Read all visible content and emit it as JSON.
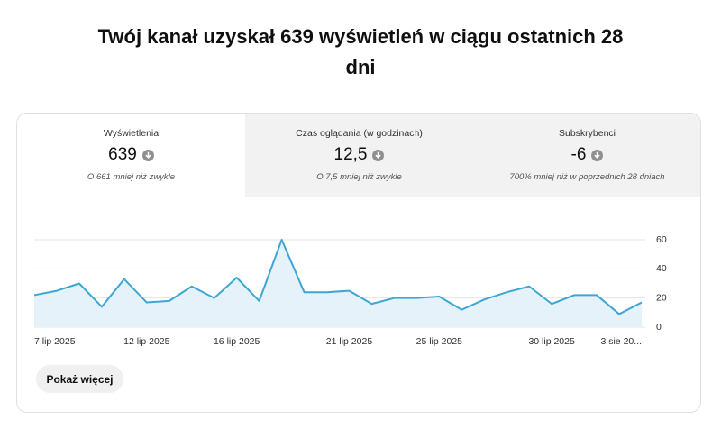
{
  "header": {
    "title": "Twój kanał uzyskał 639 wyświetleń w ciągu ostatnich 28 dni"
  },
  "tabs": [
    {
      "label": "Wyświetlenia",
      "value": "639",
      "note": "O 661 mniej niż zwykle"
    },
    {
      "label": "Czas oglądania (w godzinach)",
      "value": "12,5",
      "note": "O 7,5 mniej niż zwykle"
    },
    {
      "label": "Subskrybenci",
      "value": "-6",
      "note": "700% mniej niż w poprzednich 28 dniach"
    }
  ],
  "chart_data": {
    "type": "area",
    "categories": [
      "7 lip 2025",
      null,
      null,
      null,
      null,
      "12 lip 2025",
      null,
      null,
      null,
      "16 lip 2025",
      null,
      null,
      null,
      null,
      "21 lip 2025",
      null,
      null,
      null,
      "25 lip 2025",
      null,
      null,
      null,
      null,
      "30 lip 2025",
      null,
      null,
      null,
      "3 sie 20..."
    ],
    "series": [
      {
        "color": "#3ea6d3",
        "values": [
          22,
          25,
          30,
          14,
          33,
          17,
          18,
          28,
          20,
          34,
          18,
          60,
          24,
          24,
          25,
          16,
          20,
          20,
          21,
          12,
          19,
          24,
          28,
          16,
          22,
          22,
          9,
          17
        ]
      }
    ],
    "ylim": [
      0,
      60
    ],
    "yticks": [
      0,
      20,
      40,
      60
    ],
    "grid": true,
    "fill_color": "#e5f2f9"
  },
  "button": {
    "label": "Pokaż więcej"
  }
}
